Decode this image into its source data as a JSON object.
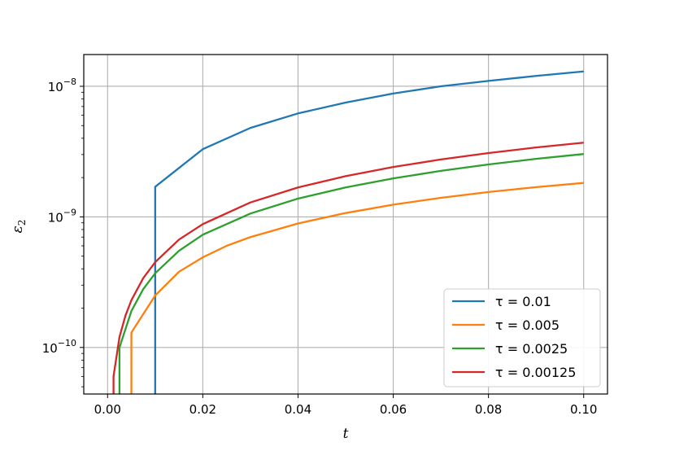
{
  "chart_data": {
    "type": "line",
    "title": "",
    "xlabel": "t",
    "ylabel": "ε2",
    "xlabel_main": "t",
    "ylabel_main": "ε",
    "ylabel_sub": "2",
    "xlim": [
      -0.005,
      0.105
    ],
    "ylim": [
      4.4e-11,
      1.75e-08
    ],
    "yscale": "log",
    "grid": true,
    "legend_position": "lower-right",
    "x_ticks": [
      0.0,
      0.02,
      0.04,
      0.06,
      0.08,
      0.1
    ],
    "x_tick_labels": [
      "0.00",
      "0.02",
      "0.04",
      "0.06",
      "0.08",
      "0.10"
    ],
    "y_ticks": [
      {
        "value": 1e-10,
        "base": "10",
        "exp": "−10"
      },
      {
        "value": 1e-09,
        "base": "10",
        "exp": "−9"
      },
      {
        "value": 1e-08,
        "base": "10",
        "exp": "−8"
      }
    ],
    "series": [
      {
        "name": "τ = 0.01",
        "color": "#1f77b4",
        "x": [
          0.01,
          0.01,
          0.02,
          0.03,
          0.04,
          0.05,
          0.06,
          0.07,
          0.08,
          0.09,
          0.1
        ],
        "y": [
          4.4e-11,
          1.7e-09,
          3.3e-09,
          4.8e-09,
          6.2e-09,
          7.5e-09,
          8.8e-09,
          1e-08,
          1.1e-08,
          1.2e-08,
          1.3e-08
        ]
      },
      {
        "name": "τ = 0.005",
        "color": "#ff7f0e",
        "x": [
          0.005,
          0.005,
          0.01,
          0.015,
          0.02,
          0.025,
          0.03,
          0.04,
          0.05,
          0.06,
          0.07,
          0.08,
          0.09,
          0.1
        ],
        "y": [
          4.4e-11,
          1.3e-10,
          2.5e-10,
          3.8e-10,
          4.9e-10,
          6e-10,
          7e-10,
          8.9e-10,
          1.07e-09,
          1.24e-09,
          1.4e-09,
          1.55e-09,
          1.69e-09,
          1.82e-09
        ]
      },
      {
        "name": "τ = 0.0025",
        "color": "#2ca02c",
        "x": [
          0.0025,
          0.0025,
          0.005,
          0.0075,
          0.01,
          0.015,
          0.02,
          0.03,
          0.04,
          0.05,
          0.06,
          0.07,
          0.08,
          0.09,
          0.1
        ],
        "y": [
          4.4e-11,
          1e-10,
          1.9e-10,
          2.8e-10,
          3.7e-10,
          5.5e-10,
          7.3e-10,
          1.06e-09,
          1.38e-09,
          1.68e-09,
          1.97e-09,
          2.25e-09,
          2.52e-09,
          2.78e-09,
          3.03e-09
        ]
      },
      {
        "name": "τ = 0.00125",
        "color": "#d62728",
        "x": [
          0.00125,
          0.00125,
          0.0025,
          0.00375,
          0.005,
          0.0075,
          0.01,
          0.015,
          0.02,
          0.03,
          0.04,
          0.05,
          0.06,
          0.07,
          0.08,
          0.09,
          0.1
        ],
        "y": [
          4.4e-11,
          6e-11,
          1.2e-10,
          1.75e-10,
          2.3e-10,
          3.4e-10,
          4.5e-10,
          6.7e-10,
          8.8e-10,
          1.29e-09,
          1.68e-09,
          2.05e-09,
          2.41e-09,
          2.75e-09,
          3.08e-09,
          3.4e-09,
          3.7e-09
        ]
      }
    ]
  }
}
